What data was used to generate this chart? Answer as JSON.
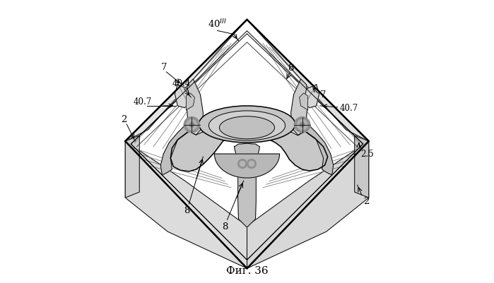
{
  "title": "",
  "caption": "Фиг. 36",
  "background_color": "#ffffff",
  "line_color": "#000000",
  "fig_width": 6.99,
  "fig_height": 4.02,
  "dpi": 100
}
